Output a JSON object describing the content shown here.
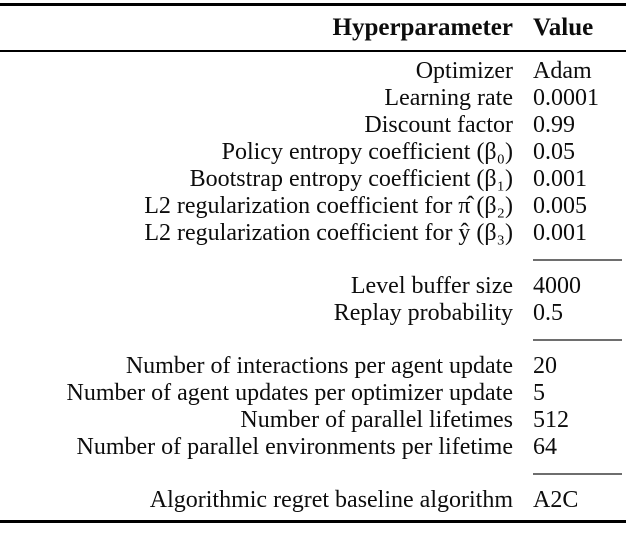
{
  "table": {
    "headers": {
      "hyperparameter": "Hyperparameter",
      "value": "Value"
    },
    "rule_colors": {
      "heavy_rule": "#000000",
      "group_separator_rule": "#6e6e6e"
    },
    "text_color": "#0d0d0d",
    "background_color": "#ffffff",
    "groups": [
      {
        "rows": [
          {
            "label": "Optimizer",
            "value": "Adam"
          },
          {
            "label": "Learning rate",
            "value": "0.0001"
          },
          {
            "label": "Discount factor",
            "value": "0.99"
          },
          {
            "label": "Policy entropy coefficient (β₀)",
            "value": "0.05"
          },
          {
            "label": "Bootstrap entropy coefficient (β₁)",
            "value": "0.001"
          },
          {
            "label": "L2 regularization coefficient for π̂ (β₂)",
            "value": "0.005"
          },
          {
            "label": "L2 regularization coefficient for ŷ (β₃)",
            "value": "0.001"
          }
        ]
      },
      {
        "rows": [
          {
            "label": "Level buffer size",
            "value": "4000"
          },
          {
            "label": "Replay probability",
            "value": "0.5"
          }
        ]
      },
      {
        "rows": [
          {
            "label": "Number of interactions per agent update",
            "value": "20"
          },
          {
            "label": "Number of agent updates per optimizer update",
            "value": "5"
          },
          {
            "label": "Number of parallel lifetimes",
            "value": "512"
          },
          {
            "label": "Number of parallel environments per lifetime",
            "value": "64"
          }
        ]
      },
      {
        "rows": [
          {
            "label": "Algorithmic regret baseline algorithm",
            "value": "A2C"
          }
        ]
      }
    ]
  }
}
